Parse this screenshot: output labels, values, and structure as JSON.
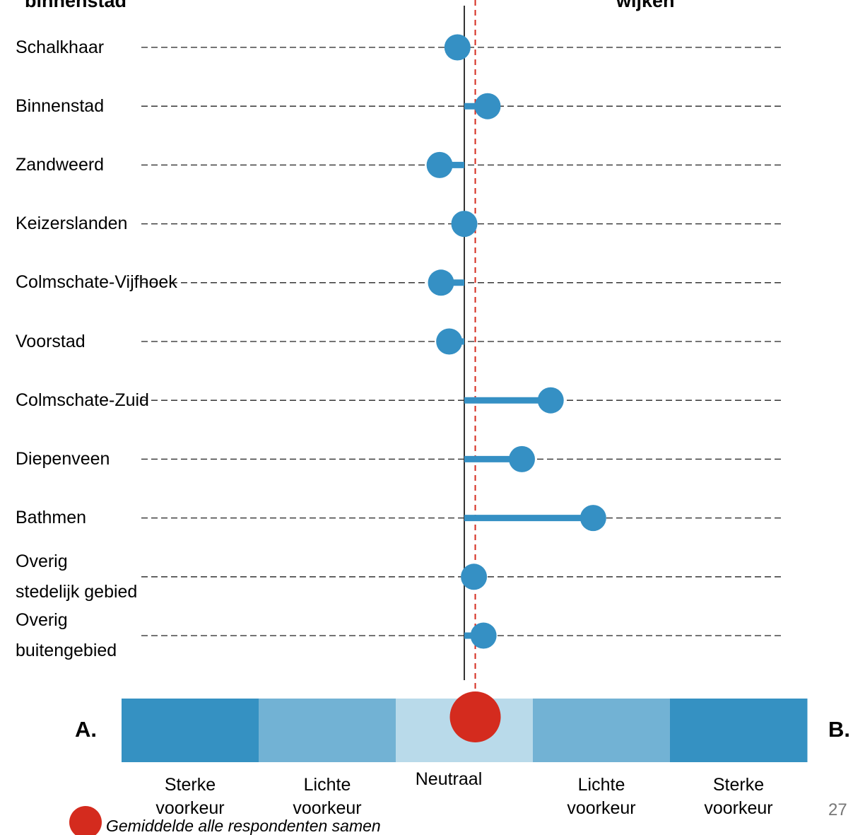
{
  "chart_data": {
    "type": "dot",
    "title_left": "binnenstad",
    "title_right": "wijken",
    "categories": [
      "Schalkhaar",
      "Binnenstad",
      "Zandweerd",
      "Keizerslanden",
      "Colmschate-Vijfhoek",
      "Voorstad",
      "Colmschate-Zuid",
      "Diepenveen",
      "Bathmen",
      "Overig\nstedelijk gebied",
      "Overig\nbuitengebied"
    ],
    "values": [
      2.95,
      3.17,
      2.82,
      3.0,
      2.83,
      2.89,
      3.63,
      3.42,
      3.94,
      3.07,
      3.14
    ],
    "color": "#3590c4",
    "xlim": [
      0.5,
      5.5
    ],
    "mean": 3.08,
    "mean_color": "#d42b1e",
    "mean_label": "Gemiddelde alle respondenten samen",
    "scale_labels": [
      "Sterke\nvoorkeur",
      "Lichte\nvoorkeur",
      "Neutraal",
      "Lichte\nvoorkeur",
      "Sterke\nvoorkeur"
    ],
    "scale_colors": [
      "#3591c2",
      "#72b2d4",
      "#b9daea",
      "#72b2d4",
      "#3591c2"
    ],
    "end_left": "A.",
    "end_right": "B."
  },
  "page_number": "27"
}
